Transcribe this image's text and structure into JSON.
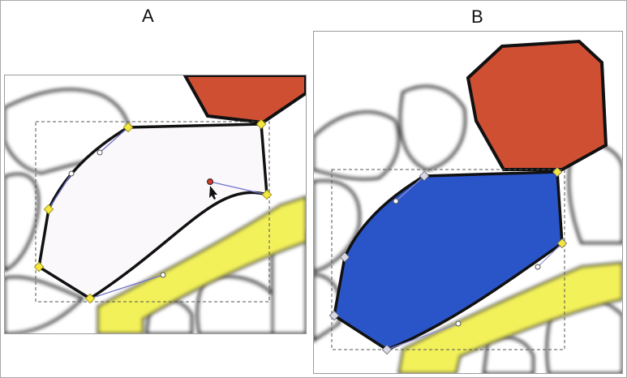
{
  "labels": {
    "a": "A",
    "b": "B"
  },
  "colors": {
    "red_shape": "#cf4f33",
    "blue_shape": "#2a55c8",
    "yellow_band": "#f3f15a",
    "handle": "#f5e640",
    "outline": "#111111"
  },
  "icons": {
    "node_handle": "diamond-handle-icon",
    "control_point": "circle-control-point-icon",
    "cursor": "arrow-cursor-icon"
  }
}
